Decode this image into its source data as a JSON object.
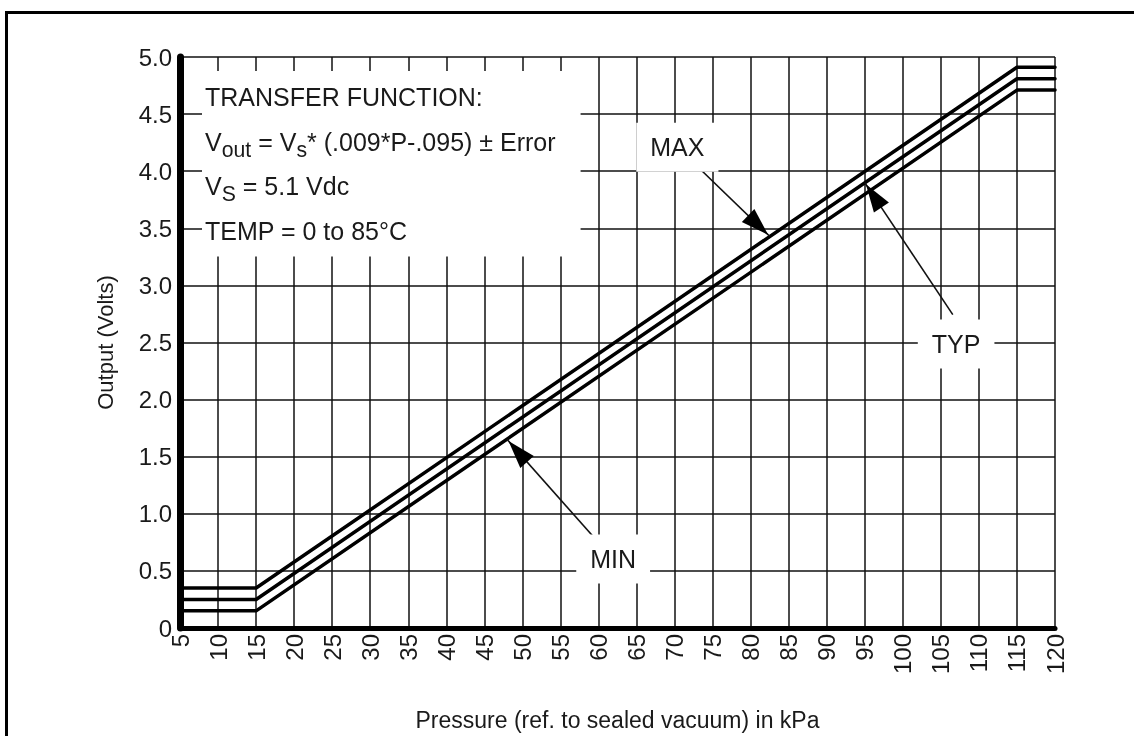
{
  "chart_data": {
    "type": "line",
    "xlabel": "Pressure (ref. to sealed vacuum) in kPa",
    "ylabel": "Output (Volts)",
    "annotations": [
      "TRANSFER FUNCTION:",
      "V$_{out}$ = V$_{s}$* (.009*P-.095) ± Error",
      "V$_{S}$ = 5.1 Vdc",
      "TEMP = 0 to 85°C",
      {
        "text": "MAX",
        "x": 82.5,
        "y": 3.43
      },
      {
        "text": "TYP",
        "x": 95,
        "y": 3.9
      },
      {
        "text": "MIN",
        "x": 48,
        "y": 1.65
      }
    ],
    "x": [
      5,
      15,
      115,
      120
    ],
    "series": [
      {
        "color": "#000000",
        "values": [
          0.35,
          0.35,
          4.91,
          4.91
        ]
      },
      {
        "color": "#000000",
        "values": [
          0.25,
          0.25,
          4.81,
          4.81
        ]
      },
      {
        "color": "#000000",
        "values": [
          0.15,
          0.15,
          4.71,
          4.71
        ]
      }
    ],
    "xlim": [
      5,
      120
    ],
    "xticks": [
      5,
      10,
      15,
      20,
      25,
      30,
      35,
      40,
      45,
      50,
      55,
      60,
      65,
      70,
      75,
      80,
      85,
      90,
      95,
      100,
      105,
      110,
      115,
      120
    ],
    "ylim": [
      0,
      5
    ],
    "yticks": [
      0,
      0.5,
      {
        "value": 1,
        "label": "1.0"
      },
      1.5,
      {
        "value": 2,
        "label": "2.0"
      },
      2.5,
      {
        "value": 3,
        "label": "3.0"
      },
      3.5,
      {
        "value": 4,
        "label": "4.0"
      },
      4.5,
      {
        "value": 5,
        "label": "5.0"
      }
    ],
    "grid": true,
    "marker": "none",
    "line_style": "solid"
  }
}
